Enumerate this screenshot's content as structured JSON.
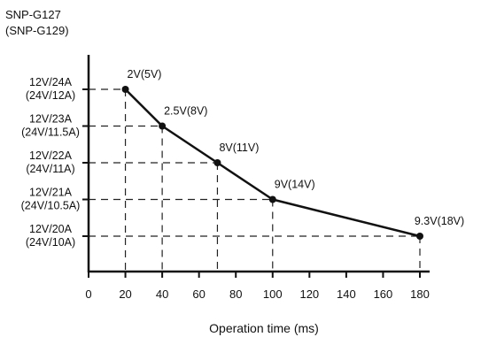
{
  "chart_data": {
    "type": "line",
    "title": "SNP-G127",
    "subtitle": "(SNP-G129)",
    "xlabel": "Operation time (ms)",
    "ylabel": "",
    "xlim": [
      0,
      180
    ],
    "x_ticks": [
      "0",
      "20",
      "40",
      "60",
      "80",
      "100",
      "120",
      "140",
      "160",
      "180"
    ],
    "x_tick_values": [
      0,
      20,
      40,
      60,
      80,
      100,
      120,
      140,
      160,
      180
    ],
    "y_categories": [
      {
        "line1": "12V/24A",
        "line2": "(24V/12A)"
      },
      {
        "line1": "12V/23A",
        "line2": "(24V/11.5A)"
      },
      {
        "line1": "12V/22A",
        "line2": "(24V/11A)"
      },
      {
        "line1": "12V/21A",
        "line2": "(24V/10.5A)"
      },
      {
        "line1": "12V/20A",
        "line2": "(24V/10A)"
      }
    ],
    "series": [
      {
        "points": [
          {
            "x": 20,
            "y": 0,
            "label": "2V(5V)"
          },
          {
            "x": 40,
            "y": 1,
            "label": "2.5V(8V)"
          },
          {
            "x": 70,
            "y": 2,
            "label": "8V(11V)"
          },
          {
            "x": 100,
            "y": 3,
            "label": "9V(14V)"
          },
          {
            "x": 180,
            "y": 4,
            "label": "9.3V(18V)"
          }
        ]
      }
    ],
    "grid": "dashed drop lines",
    "line_color": "#111111",
    "marker_color": "#111111"
  }
}
